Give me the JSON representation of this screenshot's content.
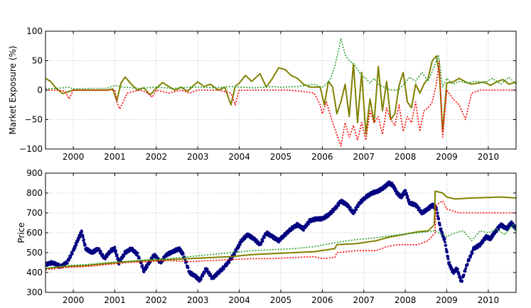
{
  "chart_data": [
    {
      "type": "line",
      "title": "",
      "xlabel": "",
      "ylabel": "Market Exposure (%)",
      "xlim": [
        1999.33,
        2010.67
      ],
      "ylim": [
        -100,
        100
      ],
      "grid": true,
      "x_ticks": [
        2000,
        2001,
        2002,
        2003,
        2004,
        2005,
        2006,
        2007,
        2008,
        2009,
        2010
      ],
      "x_tick_labels": [
        "2000",
        "2001",
        "2002",
        "2003",
        "2004",
        "2005",
        "2006",
        "2007",
        "2008",
        "2009",
        "2010"
      ],
      "y_ticks": [
        -100,
        -50,
        0,
        50,
        100
      ],
      "y_tick_labels": [
        "−100",
        "−50",
        "0",
        "50",
        "100"
      ],
      "series": [
        {
          "color": "#808000",
          "style": "solid",
          "x": [
            1999.33,
            1999.45,
            1999.6,
            1999.75,
            1999.9,
            2000.0,
            2000.2,
            2000.4,
            2000.6,
            2000.8,
            2000.95,
            2001.05,
            2001.15,
            2001.25,
            2001.4,
            2001.55,
            2001.7,
            2001.85,
            2002.0,
            2002.15,
            2002.3,
            2002.45,
            2002.6,
            2002.75,
            2002.9,
            2003.0,
            2003.15,
            2003.3,
            2003.5,
            2003.65,
            2003.8,
            2003.9,
            2004.0,
            2004.15,
            2004.3,
            2004.5,
            2004.65,
            2004.8,
            2004.95,
            2005.1,
            2005.25,
            2005.4,
            2005.55,
            2005.7,
            2005.85,
            2005.95,
            2006.05,
            2006.15,
            2006.25,
            2006.35,
            2006.45,
            2006.55,
            2006.65,
            2006.75,
            2006.85,
            2006.95,
            2007.05,
            2007.15,
            2007.25,
            2007.35,
            2007.45,
            2007.55,
            2007.65,
            2007.75,
            2007.85,
            2007.95,
            2008.05,
            2008.15,
            2008.25,
            2008.35,
            2008.45,
            2008.55,
            2008.65,
            2008.75,
            2008.82,
            2008.9,
            2009.0,
            2009.15,
            2009.3,
            2009.45,
            2009.6,
            2009.75,
            2009.9,
            2010.05,
            2010.2,
            2010.35,
            2010.5,
            2010.67
          ],
          "y": [
            20,
            15,
            2,
            -6,
            -2,
            0,
            0,
            0,
            0,
            0,
            2,
            -18,
            12,
            22,
            10,
            0,
            4,
            -8,
            3,
            13,
            6,
            0,
            5,
            -2,
            8,
            14,
            6,
            10,
            0,
            5,
            -25,
            6,
            12,
            25,
            15,
            28,
            5,
            20,
            38,
            35,
            25,
            20,
            10,
            5,
            5,
            5,
            -25,
            15,
            5,
            -40,
            -20,
            10,
            -45,
            45,
            -55,
            30,
            -75,
            -15,
            -55,
            40,
            -35,
            15,
            -50,
            -40,
            8,
            30,
            -20,
            -30,
            10,
            -5,
            10,
            20,
            50,
            58,
            30,
            -70,
            12,
            14,
            20,
            14,
            10,
            12,
            14,
            8,
            14,
            18,
            10,
            14
          ]
        },
        {
          "color": "#ff0000",
          "style": "dotted",
          "x": [
            1999.33,
            1999.6,
            1999.8,
            1999.9,
            2000.0,
            2000.2,
            2000.4,
            2000.6,
            2000.8,
            2001.0,
            2001.05,
            2001.12,
            2001.3,
            2001.6,
            2001.8,
            2001.9,
            2002.0,
            2002.3,
            2002.6,
            2002.8,
            2003.0,
            2003.5,
            2003.8,
            2003.9,
            2004.0,
            2004.5,
            2004.9,
            2005.2,
            2005.5,
            2005.8,
            2005.95,
            2006.0,
            2006.1,
            2006.25,
            2006.35,
            2006.45,
            2006.55,
            2006.65,
            2006.75,
            2006.85,
            2006.95,
            2007.05,
            2007.15,
            2007.25,
            2007.35,
            2007.45,
            2007.55,
            2007.65,
            2007.75,
            2007.85,
            2007.95,
            2008.05,
            2008.15,
            2008.25,
            2008.35,
            2008.45,
            2008.55,
            2008.65,
            2008.75,
            2008.82,
            2008.9,
            2009.0,
            2009.15,
            2009.3,
            2009.45,
            2009.6,
            2009.8,
            2010.0,
            2010.3,
            2010.67
          ],
          "y": [
            0,
            0,
            -2,
            -15,
            0,
            0,
            0,
            0,
            0,
            0,
            -20,
            -32,
            -5,
            0,
            -5,
            -12,
            0,
            -5,
            0,
            -5,
            0,
            0,
            -5,
            -25,
            0,
            0,
            0,
            0,
            -2,
            -5,
            -25,
            -40,
            -20,
            -55,
            -75,
            -95,
            -55,
            -80,
            -60,
            -85,
            -55,
            -85,
            -35,
            -55,
            -45,
            -75,
            -30,
            -50,
            -60,
            -25,
            -70,
            -45,
            -55,
            -20,
            -70,
            -35,
            -30,
            -20,
            10,
            50,
            -80,
            0,
            -15,
            -25,
            -50,
            -5,
            0,
            0,
            0,
            0
          ]
        },
        {
          "color": "#2ca02c",
          "style": "dotted",
          "x": [
            1999.33,
            1999.6,
            1999.9,
            2000.0,
            2000.4,
            2000.8,
            2001.0,
            2001.2,
            2001.6,
            2002.0,
            2002.4,
            2002.8,
            2003.0,
            2003.4,
            2003.8,
            2004.0,
            2004.4,
            2004.8,
            2005.0,
            2005.4,
            2005.8,
            2006.0,
            2006.1,
            2006.2,
            2006.3,
            2006.4,
            2006.45,
            2006.55,
            2006.65,
            2006.75,
            2006.85,
            2006.95,
            2007.05,
            2007.15,
            2007.25,
            2007.35,
            2007.5,
            2007.65,
            2007.8,
            2007.95,
            2008.1,
            2008.25,
            2008.4,
            2008.55,
            2008.7,
            2008.8,
            2008.9,
            2009.0,
            2009.15,
            2009.3,
            2009.5,
            2009.7,
            2009.9,
            2010.1,
            2010.3,
            2010.5,
            2010.67
          ],
          "y": [
            2,
            3,
            5,
            2,
            3,
            3,
            8,
            5,
            3,
            5,
            3,
            5,
            5,
            4,
            6,
            5,
            4,
            6,
            5,
            6,
            10,
            5,
            10,
            20,
            40,
            70,
            88,
            60,
            50,
            45,
            35,
            25,
            20,
            12,
            20,
            10,
            5,
            0,
            0,
            8,
            22,
            15,
            30,
            15,
            40,
            60,
            5,
            20,
            10,
            15,
            12,
            15,
            12,
            20,
            10,
            22,
            10
          ]
        }
      ]
    },
    {
      "type": "scatter",
      "title": "",
      "xlabel": "",
      "ylabel": "Price",
      "xlim": [
        1999.33,
        2010.67
      ],
      "ylim": [
        300,
        900
      ],
      "grid": true,
      "x_ticks": [
        2000,
        2001,
        2002,
        2003,
        2004,
        2005,
        2006,
        2007,
        2008,
        2009,
        2010
      ],
      "x_tick_labels": [
        "2000",
        "2001",
        "2002",
        "2003",
        "2004",
        "2005",
        "2006",
        "2007",
        "2008",
        "2009",
        "2010"
      ],
      "y_ticks": [
        300,
        400,
        500,
        600,
        700,
        800,
        900
      ],
      "y_tick_labels": [
        "300",
        "400",
        "500",
        "600",
        "700",
        "800",
        "900"
      ],
      "series": [
        {
          "color": "#000080",
          "style": "points",
          "x": [
            1999.33,
            1999.5,
            1999.7,
            1999.85,
            2000.0,
            2000.1,
            2000.2,
            2000.3,
            2000.45,
            2000.6,
            2000.75,
            2000.9,
            2001.0,
            2001.1,
            2001.25,
            2001.4,
            2001.55,
            2001.7,
            2001.8,
            2001.95,
            2002.1,
            2002.25,
            2002.4,
            2002.55,
            2002.65,
            2002.8,
            2002.95,
            2003.05,
            2003.2,
            2003.35,
            2003.5,
            2003.65,
            2003.8,
            2003.95,
            2004.05,
            2004.2,
            2004.35,
            2004.5,
            2004.65,
            2004.8,
            2004.95,
            2005.1,
            2005.25,
            2005.4,
            2005.55,
            2005.7,
            2005.85,
            2006.0,
            2006.15,
            2006.3,
            2006.45,
            2006.6,
            2006.75,
            2006.9,
            2007.05,
            2007.2,
            2007.35,
            2007.5,
            2007.6,
            2007.7,
            2007.8,
            2007.9,
            2008.0,
            2008.1,
            2008.25,
            2008.4,
            2008.55,
            2008.65,
            2008.75,
            2008.85,
            2008.95,
            2009.05,
            2009.15,
            2009.25,
            2009.35,
            2009.5,
            2009.65,
            2009.8,
            2009.95,
            2010.05,
            2010.15,
            2010.3,
            2010.45,
            2010.55,
            2010.67
          ],
          "y": [
            440,
            450,
            430,
            450,
            510,
            560,
            605,
            520,
            500,
            520,
            470,
            510,
            520,
            450,
            500,
            520,
            490,
            410,
            440,
            490,
            450,
            490,
            505,
            520,
            490,
            400,
            380,
            360,
            420,
            370,
            400,
            430,
            470,
            520,
            560,
            590,
            570,
            540,
            600,
            580,
            560,
            590,
            620,
            640,
            620,
            660,
            670,
            670,
            690,
            720,
            760,
            740,
            700,
            750,
            780,
            800,
            810,
            830,
            850,
            840,
            800,
            780,
            810,
            750,
            740,
            700,
            720,
            740,
            720,
            620,
            560,
            450,
            400,
            420,
            350,
            450,
            520,
            540,
            580,
            570,
            600,
            640,
            620,
            650,
            620
          ]
        },
        {
          "color": "#808000",
          "style": "solid",
          "x": [
            1999.33,
            1999.8,
            2000.3,
            2000.8,
            2001.3,
            2001.8,
            2002.3,
            2002.8,
            2003.3,
            2003.8,
            2004.3,
            2004.8,
            2005.3,
            2005.8,
            2006.3,
            2006.35,
            2006.8,
            2007.3,
            2007.55,
            2007.8,
            2008.3,
            2008.55,
            2008.7,
            2008.72,
            2008.9,
            2009.0,
            2009.2,
            2009.6,
            2010.0,
            2010.3,
            2010.67
          ],
          "y": [
            420,
            430,
            435,
            445,
            455,
            460,
            465,
            470,
            475,
            480,
            490,
            495,
            500,
            505,
            520,
            540,
            545,
            560,
            575,
            585,
            605,
            610,
            640,
            810,
            800,
            780,
            770,
            775,
            778,
            780,
            775
          ]
        },
        {
          "color": "#ff0000",
          "style": "dotted",
          "x": [
            1999.33,
            1999.8,
            2000.3,
            2000.8,
            2001.3,
            2001.8,
            2002.3,
            2002.8,
            2003.3,
            2003.8,
            2004.3,
            2004.8,
            2005.3,
            2005.8,
            2006.0,
            2006.3,
            2006.35,
            2006.8,
            2007.3,
            2007.55,
            2007.8,
            2008.3,
            2008.55,
            2008.72,
            2008.74,
            2008.9,
            2009.0,
            2009.3,
            2009.6,
            2010.0,
            2010.3,
            2010.67
          ],
          "y": [
            415,
            425,
            430,
            440,
            450,
            455,
            460,
            455,
            460,
            465,
            470,
            470,
            475,
            480,
            470,
            475,
            500,
            510,
            510,
            530,
            540,
            540,
            560,
            600,
            740,
            760,
            720,
            700,
            700,
            700,
            700,
            700
          ]
        },
        {
          "color": "#2ca02c",
          "style": "dotted",
          "x": [
            1999.33,
            1999.8,
            2000.3,
            2000.8,
            2001.3,
            2001.8,
            2002.3,
            2002.8,
            2003.3,
            2003.8,
            2004.3,
            2004.8,
            2005.3,
            2005.8,
            2006.3,
            2006.8,
            2007.3,
            2007.8,
            2008.3,
            2008.7,
            2008.8,
            2009.0,
            2009.2,
            2009.4,
            2009.6,
            2009.8,
            2010.0,
            2010.2,
            2010.4,
            2010.6,
            2010.67
          ],
          "y": [
            420,
            435,
            440,
            450,
            455,
            465,
            470,
            480,
            490,
            500,
            510,
            515,
            520,
            530,
            550,
            565,
            575,
            590,
            600,
            610,
            600,
            580,
            600,
            610,
            560,
            610,
            600,
            620,
            590,
            640,
            600
          ]
        }
      ]
    }
  ],
  "colors": {
    "blue_price": "#000080",
    "olive": "#808000",
    "red": "#ff0000",
    "green": "#2ca02c",
    "grid": "#b0b0b0"
  }
}
